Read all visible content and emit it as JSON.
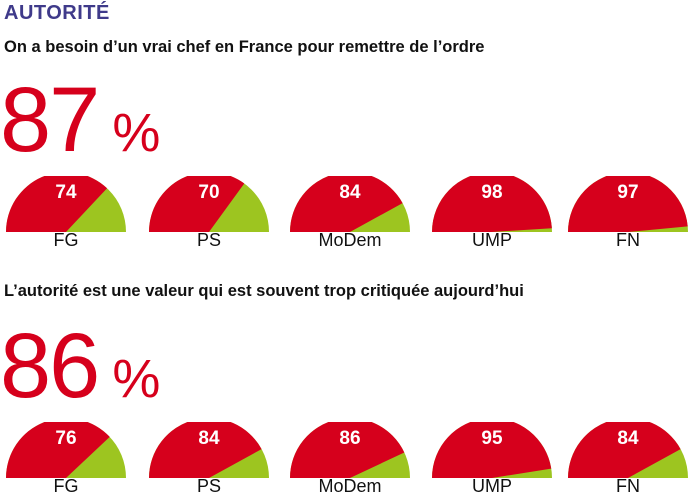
{
  "title": "AUTORITÉ",
  "colors": {
    "accent": "#d6001c",
    "secondary": "#9dc520",
    "title": "#3f3a8a"
  },
  "sections": [
    {
      "subtitle": "On a besoin d’un vrai chef en France pour remettre de l’ordre",
      "big_value": "87",
      "big_unit": "%"
    },
    {
      "subtitle": "L’autorité est une valeur qui est souvent trop critiquée aujourd’hui",
      "big_value": "86",
      "big_unit": "%"
    }
  ],
  "chart_data": [
    {
      "type": "pie",
      "title": "On a besoin d’un vrai chef en France pour remettre de l’ordre",
      "total": 87,
      "categories": [
        "FG",
        "PS",
        "MoDem",
        "UMP",
        "FN"
      ],
      "values": [
        74,
        70,
        84,
        98,
        97
      ],
      "unit": "%"
    },
    {
      "type": "pie",
      "title": "L’autorité est une valeur qui est souvent trop critiquée aujourd’hui",
      "total": 86,
      "categories": [
        "FG",
        "PS",
        "MoDem",
        "UMP",
        "FN"
      ],
      "values": [
        76,
        84,
        86,
        95,
        84
      ],
      "unit": "%"
    }
  ]
}
